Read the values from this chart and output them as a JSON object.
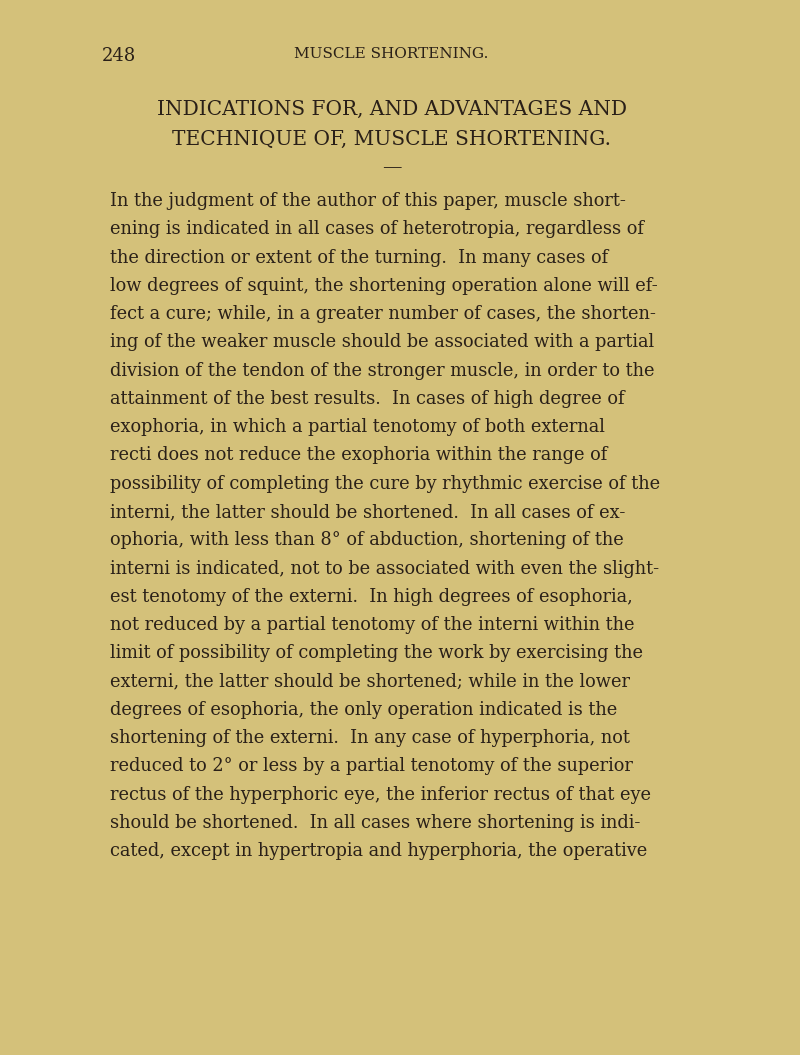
{
  "background_color": "#d4c17a",
  "page_bg_color": "#d9c97e",
  "text_color": "#2a2018",
  "page_number": "248",
  "header": "MUSCLE SHORTENING.",
  "title_line1": "INDICATIONS FOR, AND ADVANTAGES AND",
  "title_line2": "TECHNIQUE OF, MUSCLE SHORTENING.",
  "separator": "—",
  "body_text": "In the judgment of the author of this paper, muscle short-\nening is indicated in all cases of heterotropia, regardless of\nthe direction or extent of the turning.  In many cases of\nlow degrees of squint, the shortening operation alone will ef-\nfect a cure; while, in a greater number of cases, the shorten-\ning of the weaker muscle should be associated with a partial\ndivision of the tendon of the stronger muscle, in order to the\nattainment of the best results.  In cases of high degree of\nexophoria, in which a partial tenotomy of both external\nrecti does not reduce the exophoria within the range of\npossibility of completing the cure by rhythmic exercise of the\ninterni, the latter should be shortened.  In all cases of ex-\nophoria, with less than 8° of abduction, shortening of the\ninterni is indicated, not to be associated with even the slight-\nest tenotomy of the externi.  In high degrees of esophoria,\nnot reduced by a partial tenotomy of the interni within the\nlimit of possibility of completing the work by exercising the\nexterni, the latter should be shortened; while in the lower\ndegrees of esophoria, the only operation indicated is the\nshortening of the externi.  In any case of hyperphoria, not\nreduced to 2° or less by a partial tenotomy of the superior\nrectus of the hyperphoric eye, the inferior rectus of that eye\nshould be shortened.  In all cases where shortening is indi-\ncated, except in hypertropia and hyperphoria, the operative",
  "fig_width": 8.0,
  "fig_height": 10.55,
  "dpi": 100
}
